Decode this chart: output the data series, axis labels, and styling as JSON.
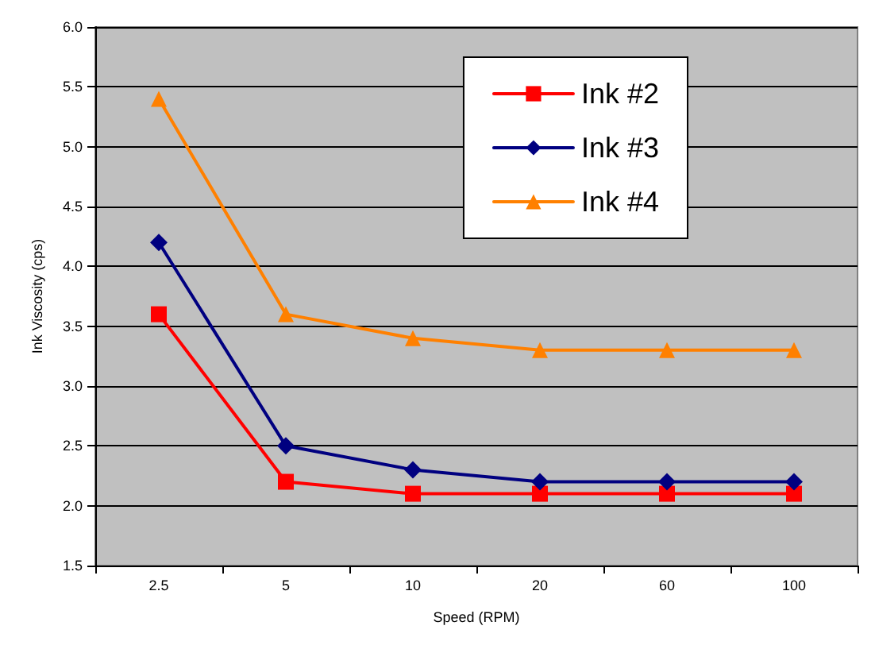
{
  "chart_data": {
    "type": "line",
    "xlabel": "Speed (RPM)",
    "ylabel": "Ink Viscosity (cps)",
    "categories": [
      "2.5",
      "5",
      "10",
      "20",
      "60",
      "100"
    ],
    "series": [
      {
        "name": "Ink #2",
        "color": "#ff0000",
        "marker": "square",
        "values": [
          3.6,
          2.2,
          2.1,
          2.1,
          2.1,
          2.1
        ]
      },
      {
        "name": "Ink #3",
        "color": "#000080",
        "marker": "diamond",
        "values": [
          4.2,
          2.5,
          2.3,
          2.2,
          2.2,
          2.2
        ]
      },
      {
        "name": "Ink #4",
        "color": "#ff8000",
        "marker": "triangle",
        "values": [
          5.4,
          3.6,
          3.4,
          3.3,
          3.3,
          3.3
        ]
      }
    ],
    "ylim": [
      1.5,
      6
    ],
    "yticks": [
      1.5,
      {
        "value": 2,
        "label": "2.0"
      },
      2.5,
      {
        "value": 3,
        "label": "3.0"
      },
      3.5,
      {
        "value": 4,
        "label": "4.0"
      },
      4.5,
      {
        "value": 5,
        "label": "5.0"
      },
      5.5,
      {
        "value": 6,
        "label": "6.0"
      }
    ],
    "grid": "y",
    "legend": "top right",
    "line_style": "solid"
  }
}
